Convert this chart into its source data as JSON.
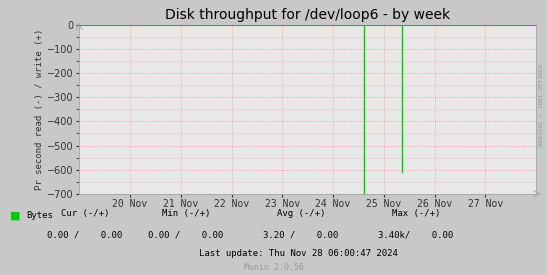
{
  "title": "Disk throughput for /dev/loop6 - by week",
  "ylabel": "Pr second read (-) / write (+)",
  "background_color": "#c8c8c8",
  "plot_bg_color": "#e8e8e8",
  "grid_color": "#ff8888",
  "ylim": [
    -700,
    0
  ],
  "yticks": [
    0,
    -100,
    -200,
    -300,
    -400,
    -500,
    -600,
    -700
  ],
  "x_min": 0,
  "x_max": 9,
  "xtick_labels": [
    "20 Nov",
    "21 Nov",
    "22 Nov",
    "23 Nov",
    "24 Nov",
    "25 Nov",
    "26 Nov",
    "27 Nov"
  ],
  "xtick_positions": [
    1,
    2,
    3,
    4,
    5,
    6,
    7,
    8
  ],
  "line_color": "#00cc00",
  "spike1_x": 5.6,
  "spike1_val": -720,
  "spike2_x": 6.35,
  "spike2_val": -610,
  "zero_line_color": "#cc0000",
  "legend_color": "#00cc00",
  "watermark": "RRDTOOL / TOBI OETIKER",
  "title_fontsize": 10,
  "tick_fontsize": 7,
  "stats_fontsize": 6.5,
  "border_color": "#aaaaaa",
  "arrow_color": "#aaaaaa",
  "cur_header": "Cur (-/+)",
  "min_header": "Min (-/+)",
  "avg_header": "Avg (-/+)",
  "max_header": "Max (-/+)",
  "bytes_label": "Bytes",
  "cur_val": "0.00 /    0.00",
  "min_val": "0.00 /    0.00",
  "avg_val": "3.20 /    0.00",
  "max_val": "3.40k/    0.00",
  "last_update": "Last update: Thu Nov 28 06:00:47 2024",
  "munin_text": "Munin 2.0.56"
}
